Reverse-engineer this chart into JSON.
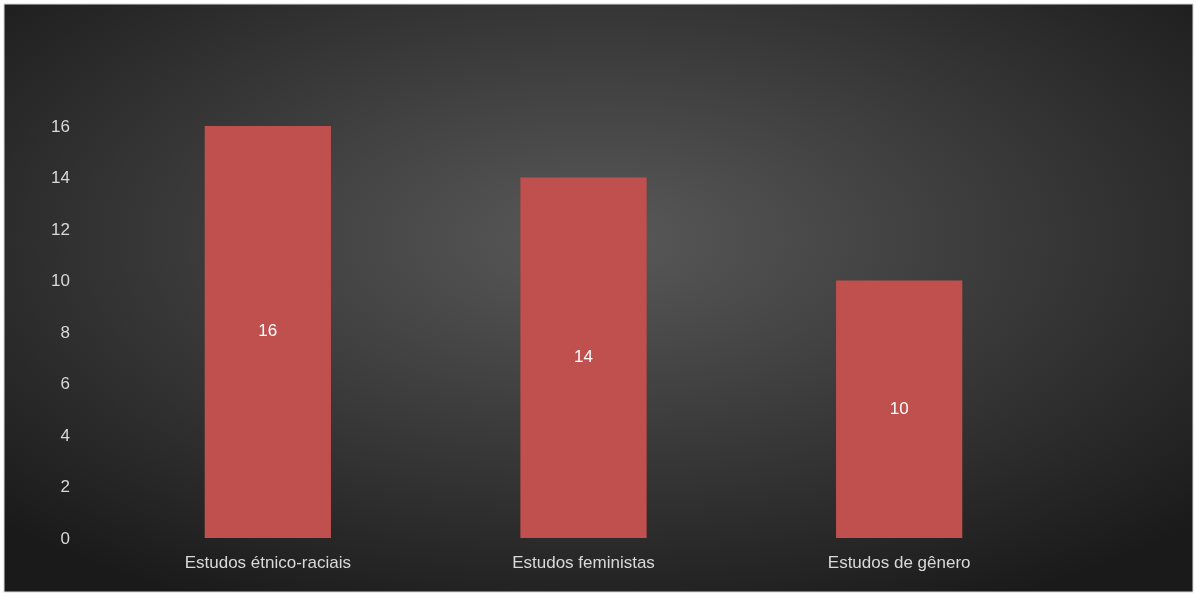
{
  "chart_data": {
    "type": "bar",
    "categories": [
      "Estudos étnico-raciais",
      "Estudos feministas",
      "Estudos de gênero"
    ],
    "values": [
      16,
      14,
      10
    ],
    "color": "#c0504d",
    "ylim": [
      0,
      16
    ],
    "yticks": [
      0,
      2,
      4,
      6,
      8,
      10,
      12,
      14,
      16
    ],
    "data_labels": true,
    "grid": false
  }
}
